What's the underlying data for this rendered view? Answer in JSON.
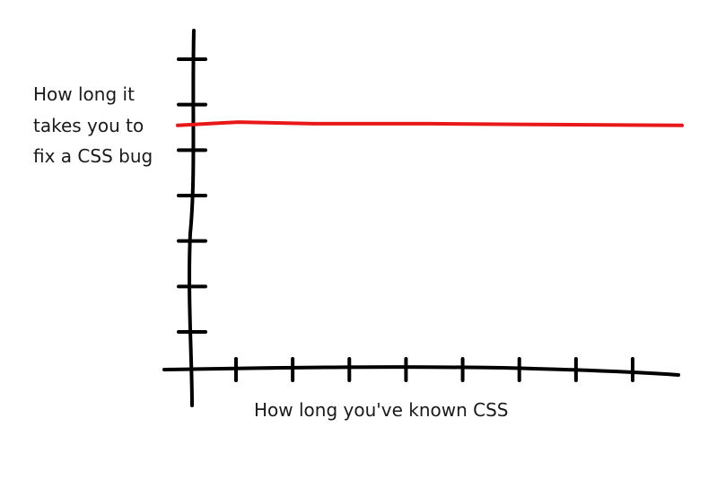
{
  "chart_data": {
    "type": "line",
    "title": "",
    "ylabel_lines": [
      "How long it",
      "takes you to",
      "fix a CSS bug"
    ],
    "xlabel": "How long you've known CSS",
    "x": [
      0,
      0.12,
      0.27,
      0.5,
      0.7,
      1.0
    ],
    "series": [
      {
        "values": [
          0.72,
          0.73,
          0.725,
          0.725,
          0.723,
          0.72
        ],
        "color": "#e81818"
      }
    ],
    "xlim": [
      0,
      1
    ],
    "ylim": [
      0,
      1
    ],
    "x_ticks_count": 8,
    "y_ticks_count": 7,
    "grid": false,
    "legend": "none",
    "axis_color": "#000000"
  }
}
